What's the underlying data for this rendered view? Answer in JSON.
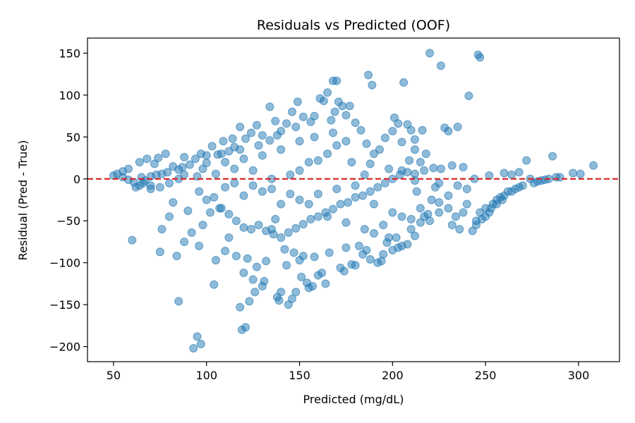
{
  "chart_data": {
    "type": "scatter",
    "title": "Residuals vs Predicted (OOF)",
    "xlabel": "Predicted (mg/dL)",
    "ylabel": "Residual (Pred - True)",
    "xlim": [
      36,
      322
    ],
    "ylim": [
      -218,
      168
    ],
    "xticks": [
      50,
      100,
      150,
      200,
      250,
      300
    ],
    "yticks": [
      150,
      100,
      50,
      0,
      -50,
      -100,
      -150,
      -200
    ],
    "ytick_labels": [
      "150",
      "100",
      "50",
      "0",
      "−50",
      "−100",
      "−150",
      "−200"
    ],
    "grid": false,
    "point_color": "#1f77b4",
    "point_alpha": 0.5,
    "reference_line": {
      "y": 0,
      "color": "#d62728",
      "style": "dashed"
    },
    "series": [
      {
        "points": [
          [
            50,
            4
          ],
          [
            52,
            6
          ],
          [
            55,
            9
          ],
          [
            58,
            12
          ],
          [
            60,
            -73
          ],
          [
            62,
            -10
          ],
          [
            64,
            20
          ],
          [
            66,
            -5
          ],
          [
            68,
            24
          ],
          [
            70,
            -12
          ],
          [
            72,
            18
          ],
          [
            74,
            25
          ],
          [
            75,
            -87
          ],
          [
            76,
            -60
          ],
          [
            78,
            30
          ],
          [
            80,
            -45
          ],
          [
            82,
            -28
          ],
          [
            84,
            -92
          ],
          [
            85,
            -146
          ],
          [
            87,
            14
          ],
          [
            88,
            -75
          ],
          [
            90,
            -38
          ],
          [
            92,
            -64
          ],
          [
            93,
            -202
          ],
          [
            95,
            -188
          ],
          [
            96,
            -80
          ],
          [
            97,
            -197
          ],
          [
            98,
            -55
          ],
          [
            100,
            28
          ],
          [
            102,
            -40
          ],
          [
            104,
            -126
          ],
          [
            105,
            -97
          ],
          [
            107,
            -35
          ],
          [
            110,
            -86
          ],
          [
            112,
            -70
          ],
          [
            114,
            48
          ],
          [
            116,
            -92
          ],
          [
            118,
            -153
          ],
          [
            119,
            -180
          ],
          [
            121,
            -177
          ],
          [
            120,
            -112
          ],
          [
            122,
            -95
          ],
          [
            123,
            -146
          ],
          [
            125,
            -120
          ],
          [
            126,
            -135
          ],
          [
            127,
            -105
          ],
          [
            130,
            -128
          ],
          [
            131,
            -122
          ],
          [
            132,
            -98
          ],
          [
            134,
            86
          ],
          [
            135,
            -60
          ],
          [
            137,
            -48
          ],
          [
            138,
            -141
          ],
          [
            139,
            -145
          ],
          [
            140,
            -135
          ],
          [
            142,
            -84
          ],
          [
            143,
            -103
          ],
          [
            144,
            -150
          ],
          [
            146,
            -143
          ],
          [
            147,
            -88
          ],
          [
            148,
            -135
          ],
          [
            150,
            -97
          ],
          [
            151,
            -117
          ],
          [
            152,
            -92
          ],
          [
            154,
            -124
          ],
          [
            155,
            -130
          ],
          [
            157,
            -128
          ],
          [
            158,
            -93
          ],
          [
            160,
            -115
          ],
          [
            162,
            -112
          ],
          [
            164,
            -125
          ],
          [
            165,
            103
          ],
          [
            166,
            -88
          ],
          [
            168,
            117
          ],
          [
            170,
            117
          ],
          [
            172,
            -106
          ],
          [
            174,
            -110
          ],
          [
            175,
            -82
          ],
          [
            178,
            -102
          ],
          [
            180,
            -103
          ],
          [
            182,
            -80
          ],
          [
            184,
            -90
          ],
          [
            186,
            -85
          ],
          [
            187,
            124
          ],
          [
            188,
            -96
          ],
          [
            189,
            112
          ],
          [
            190,
            -65
          ],
          [
            192,
            -100
          ],
          [
            194,
            -98
          ],
          [
            195,
            -90
          ],
          [
            197,
            -76
          ],
          [
            198,
            -70
          ],
          [
            200,
            -85
          ],
          [
            201,
            73
          ],
          [
            202,
            -70
          ],
          [
            203,
            -82
          ],
          [
            205,
            -80
          ],
          [
            206,
            115
          ],
          [
            208,
            -78
          ],
          [
            210,
            -60
          ],
          [
            212,
            -68
          ],
          [
            213,
            -15
          ],
          [
            215,
            -52
          ],
          [
            217,
            -45
          ],
          [
            219,
            -42
          ],
          [
            220,
            150
          ],
          [
            221,
            -25
          ],
          [
            223,
            -10
          ],
          [
            225,
            -28
          ],
          [
            226,
            135
          ],
          [
            228,
            61
          ],
          [
            230,
            -35
          ],
          [
            232,
            -55
          ],
          [
            234,
            -45
          ],
          [
            236,
            -60
          ],
          [
            238,
            -40
          ],
          [
            240,
            -30
          ],
          [
            241,
            99
          ],
          [
            243,
            -62
          ],
          [
            245,
            -55
          ],
          [
            246,
            148
          ],
          [
            247,
            145
          ],
          [
            248,
            -48
          ],
          [
            250,
            -35
          ],
          [
            252,
            -40
          ],
          [
            254,
            -30
          ],
          [
            256,
            -25
          ],
          [
            258,
            -22
          ],
          [
            260,
            -20
          ],
          [
            262,
            -15
          ],
          [
            264,
            -15
          ],
          [
            266,
            -12
          ],
          [
            268,
            -10
          ],
          [
            270,
            -8
          ],
          [
            272,
            22
          ],
          [
            274,
            0
          ],
          [
            276,
            -5
          ],
          [
            278,
            -3
          ],
          [
            280,
            -2
          ],
          [
            282,
            -1
          ],
          [
            284,
            0
          ],
          [
            286,
            27
          ],
          [
            288,
            2
          ],
          [
            290,
            2
          ],
          [
            297,
            7
          ],
          [
            301,
            6
          ],
          [
            308,
            16
          ],
          [
            247,
            -40
          ],
          [
            250,
            -45
          ],
          [
            253,
            -35
          ],
          [
            256,
            -30
          ],
          [
            259,
            -25
          ],
          [
            245,
            -50
          ],
          [
            260,
            7
          ],
          [
            264,
            5
          ],
          [
            268,
            8
          ],
          [
            252,
            4
          ],
          [
            244,
            0
          ],
          [
            238,
            14
          ],
          [
            232,
            16
          ],
          [
            226,
            12
          ],
          [
            222,
            13
          ],
          [
            217,
            10
          ],
          [
            212,
            6
          ],
          [
            209,
            22
          ],
          [
            205,
            10
          ],
          [
            198,
            12
          ],
          [
            216,
            58
          ],
          [
            212,
            47
          ],
          [
            210,
            58
          ],
          [
            208,
            65
          ],
          [
            205,
            44
          ],
          [
            203,
            66
          ],
          [
            200,
            57
          ],
          [
            196,
            49
          ],
          [
            193,
            35
          ],
          [
            190,
            30
          ],
          [
            188,
            18
          ],
          [
            186,
            42
          ],
          [
            183,
            58
          ],
          [
            180,
            67
          ],
          [
            177,
            87
          ],
          [
            175,
            76
          ],
          [
            173,
            87
          ],
          [
            171,
            92
          ],
          [
            169,
            80
          ],
          [
            167,
            70
          ],
          [
            163,
            93
          ],
          [
            161,
            96
          ],
          [
            158,
            75
          ],
          [
            156,
            68
          ],
          [
            152,
            74
          ],
          [
            149,
            92
          ],
          [
            146,
            80
          ],
          [
            143,
            66
          ],
          [
            140,
            57
          ],
          [
            137,
            69
          ],
          [
            134,
            46
          ],
          [
            130,
            52
          ],
          [
            127,
            64
          ],
          [
            124,
            55
          ],
          [
            121,
            48
          ],
          [
            118,
            62
          ],
          [
            115,
            38
          ],
          [
            112,
            33
          ],
          [
            109,
            45
          ],
          [
            106,
            29
          ],
          [
            103,
            39
          ],
          [
            100,
            19
          ],
          [
            97,
            30
          ],
          [
            94,
            24
          ],
          [
            91,
            17
          ],
          [
            88,
            26
          ],
          [
            85,
            11
          ],
          [
            82,
            15
          ],
          [
            79,
            8
          ],
          [
            76,
            6
          ],
          [
            73,
            5
          ],
          [
            70,
            3
          ],
          [
            67,
            -2
          ],
          [
            64,
            -8
          ],
          [
            61,
            -4
          ],
          [
            58,
            -1
          ],
          [
            55,
            2
          ],
          [
            96,
            -15
          ],
          [
            100,
            -25
          ],
          [
            104,
            -22
          ],
          [
            108,
            -35
          ],
          [
            112,
            -42
          ],
          [
            116,
            -50
          ],
          [
            120,
            -58
          ],
          [
            124,
            -60
          ],
          [
            128,
            -55
          ],
          [
            132,
            -62
          ],
          [
            136,
            -66
          ],
          [
            140,
            -70
          ],
          [
            144,
            -64
          ],
          [
            148,
            -59
          ],
          [
            152,
            -54
          ],
          [
            156,
            -48
          ],
          [
            160,
            -45
          ],
          [
            164,
            -40
          ],
          [
            168,
            -36
          ],
          [
            172,
            -30
          ],
          [
            176,
            -28
          ],
          [
            180,
            -22
          ],
          [
            184,
            -20
          ],
          [
            188,
            -15
          ],
          [
            192,
            -10
          ],
          [
            196,
            -5
          ],
          [
            200,
            0
          ],
          [
            204,
            5
          ],
          [
            208,
            8
          ],
          [
            212,
            -2
          ],
          [
            110,
            -10
          ],
          [
            120,
            -20
          ],
          [
            130,
            -15
          ],
          [
            140,
            -30
          ],
          [
            150,
            -25
          ],
          [
            160,
            -18
          ],
          [
            170,
            -12
          ],
          [
            180,
            -8
          ],
          [
            190,
            -30
          ],
          [
            200,
            -40
          ],
          [
            210,
            -48
          ],
          [
            220,
            -50
          ],
          [
            225,
            -40
          ],
          [
            230,
            -20
          ],
          [
            235,
            -8
          ],
          [
            240,
            -12
          ],
          [
            230,
            57
          ],
          [
            235,
            62
          ],
          [
            170,
            40
          ],
          [
            175,
            45
          ],
          [
            165,
            30
          ],
          [
            160,
            22
          ],
          [
            155,
            20
          ],
          [
            150,
            10
          ],
          [
            145,
            5
          ],
          [
            135,
            0
          ],
          [
            125,
            10
          ],
          [
            115,
            12
          ],
          [
            105,
            6
          ],
          [
            95,
            3
          ],
          [
            85,
            0
          ],
          [
            80,
            -5
          ],
          [
            75,
            -10
          ],
          [
            70,
            -8
          ],
          [
            65,
            2
          ],
          [
            150,
            45
          ],
          [
            140,
            35
          ],
          [
            130,
            28
          ],
          [
            120,
            24
          ],
          [
            110,
            20
          ],
          [
            115,
            -5
          ],
          [
            125,
            -8
          ],
          [
            135,
            -12
          ],
          [
            145,
            -18
          ],
          [
            155,
            -30
          ],
          [
            165,
            -45
          ],
          [
            175,
            -52
          ],
          [
            185,
            -60
          ],
          [
            195,
            -55
          ],
          [
            205,
            -45
          ],
          [
            215,
            -35
          ],
          [
            225,
            -5
          ],
          [
            218,
            30
          ],
          [
            215,
            20
          ],
          [
            212,
            35
          ],
          [
            185,
            5
          ],
          [
            178,
            20
          ],
          [
            168,
            55
          ],
          [
            158,
            50
          ],
          [
            148,
            62
          ],
          [
            138,
            52
          ],
          [
            128,
            40
          ],
          [
            118,
            35
          ],
          [
            108,
            30
          ],
          [
            98,
            12
          ],
          [
            88,
            5
          ]
        ]
      }
    ]
  }
}
